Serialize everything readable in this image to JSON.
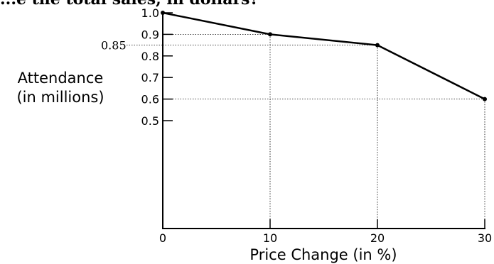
{
  "header_text": "...e the total sales, in dollars?",
  "chart_data": {
    "type": "line",
    "title": "",
    "xlabel": "Price Change (in %)",
    "ylabel": [
      "Attendance",
      "(in millions)"
    ],
    "xlim": [
      0,
      30
    ],
    "ylim": [
      0,
      1.0
    ],
    "x_ticks": [
      "0",
      "10",
      "20",
      "30"
    ],
    "y_ticks": [
      "0.5",
      "0.6",
      "0.7",
      "0.8",
      "0.9",
      "1.0"
    ],
    "series": [
      {
        "x": [
          0,
          10,
          20,
          30
        ],
        "y": [
          1.0,
          0.9,
          0.85,
          0.6
        ]
      }
    ],
    "annotations": [
      "0.85"
    ],
    "reference_lines": "dotted guides from each interior data point to both axes",
    "grid": false,
    "line_color": "#000000"
  }
}
